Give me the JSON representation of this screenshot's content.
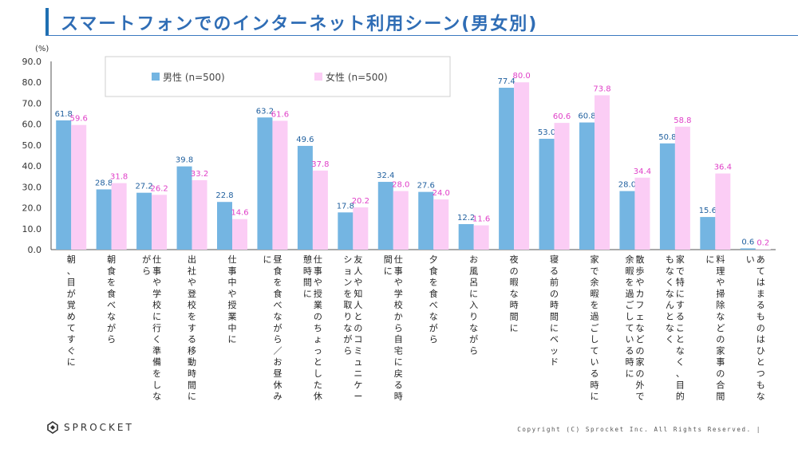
{
  "page": {
    "title": "スマートフォンでのインターネット利用シーン(男女別)",
    "copyright": "Copyright (C) Sprocket Inc. All Rights Reserved. |",
    "brand": "SPROCKET"
  },
  "chart_data": {
    "type": "bar",
    "unit_label": "(%)",
    "ylim": [
      0,
      90
    ],
    "yticks": [
      "0.0",
      "10.0",
      "20.0",
      "30.0",
      "40.0",
      "50.0",
      "60.0",
      "70.0",
      "80.0",
      "90.0"
    ],
    "grid": false,
    "legend_position": "top-left",
    "categories": [
      "朝、目が覚めてすぐに",
      "朝食を食べながら",
      "仕事や学校に行く準備をしながら",
      "出社や登校をする移動時間に",
      "仕事中や授業中に",
      "昼食を食べながら／お昼休みに",
      "仕事や授業のちょっとした休憩時間に",
      "友人や知人とのコミュニケーションを取りながら",
      "仕事や学校から自宅に戻る時間に",
      "夕食を食べながら",
      "お風呂に入りながら",
      "夜の暇な時間に",
      "寝る前の時間にベッド",
      "家で余暇を過ごしている時に",
      "散歩やカフェなどの家の外で余暇を過ごしている時に",
      "家で特にすることなく、目的もなくなんとなく",
      "料理や掃除などの家事の合間に",
      "あてはまるものはひとつもない"
    ],
    "series": [
      {
        "name": "男性 (n=500)",
        "color": "#74b5e2",
        "label_color": "#1f5f9e",
        "values": [
          61.8,
          28.8,
          27.2,
          39.8,
          22.8,
          63.2,
          49.6,
          17.8,
          32.4,
          27.6,
          12.2,
          77.4,
          53.0,
          60.8,
          28.0,
          50.8,
          15.6,
          0.6
        ]
      },
      {
        "name": "女性 (n=500)",
        "color": "#fbcdf5",
        "label_color": "#e040c8",
        "values": [
          59.6,
          31.8,
          26.2,
          33.2,
          14.6,
          61.6,
          37.8,
          20.2,
          28.0,
          24.0,
          11.6,
          80.0,
          60.6,
          73.8,
          34.4,
          58.8,
          36.4,
          0.2
        ]
      }
    ]
  }
}
